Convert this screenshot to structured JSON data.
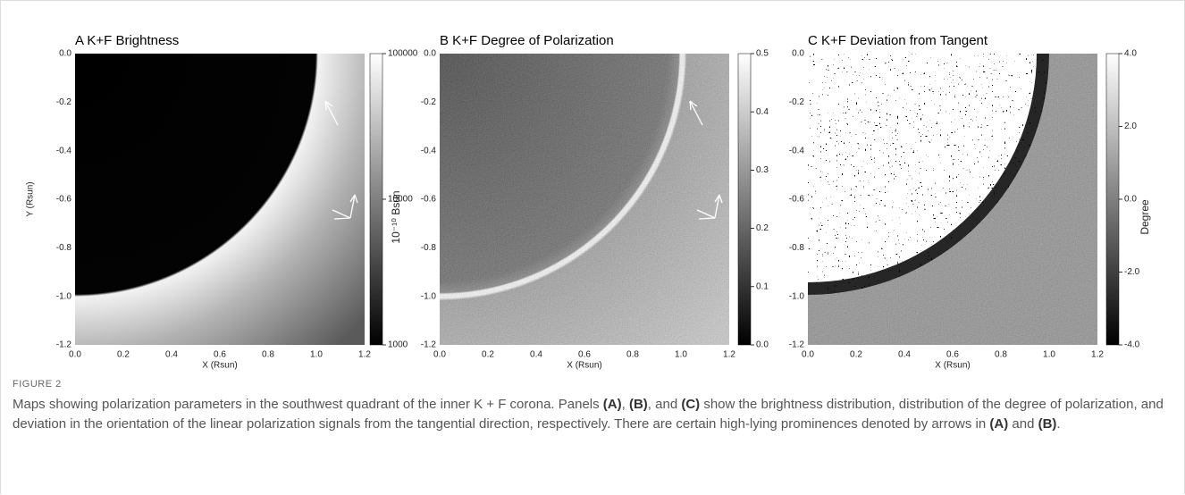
{
  "figure": {
    "panels": [
      {
        "title": "A K+F Brightness",
        "x_label": "X (Rsun)",
        "y_label": "Y (Rsun)",
        "x_ticks": [
          "0.0",
          "0.2",
          "0.4",
          "0.6",
          "0.8",
          "1.0",
          "1.2"
        ],
        "y_ticks": [
          "0.0",
          "-0.2",
          "-0.4",
          "-0.6",
          "-0.8",
          "-1.0",
          "-1.2"
        ],
        "colorbar_ticks": [
          "100000",
          "10000",
          "1000"
        ],
        "colorbar_label": "10⁻¹⁰ Bsun"
      },
      {
        "title": "B K+F Degree of Polarization",
        "x_label": "X (Rsun)",
        "x_ticks": [
          "0.0",
          "0.2",
          "0.4",
          "0.6",
          "0.8",
          "1.0",
          "1.2"
        ],
        "y_ticks": [
          "0.0",
          "-0.2",
          "-0.4",
          "-0.6",
          "-0.8",
          "-1.0",
          "-1.2"
        ],
        "colorbar_ticks": [
          "0.5",
          "0.4",
          "0.3",
          "0.2",
          "0.1",
          "0.0"
        ]
      },
      {
        "title": "C K+F Deviation from Tangent",
        "x_label": "X (Rsun)",
        "x_ticks": [
          "0.0",
          "0.2",
          "0.4",
          "0.6",
          "0.8",
          "1.0",
          "1.2"
        ],
        "y_ticks": [
          "0.0",
          "-0.2",
          "-0.4",
          "-0.6",
          "-0.8",
          "-1.0",
          "-1.2"
        ],
        "colorbar_ticks": [
          "4.0",
          "2.0",
          "0.0",
          "-2.0",
          "-4.0"
        ],
        "colorbar_label": "Degree"
      }
    ],
    "caption": {
      "label": "FIGURE 2",
      "segments": [
        "Maps showing polarization parameters in the southwest quadrant of the inner K + F corona. Panels ",
        "(A)",
        ", ",
        "(B)",
        ", and ",
        "(C)",
        " show the brightness distribution, distribution of the degree of polarization, and deviation in the orientation of the linear polarization signals from the tangential direction, respectively. There are certain high-lying prominences denoted by arrows in ",
        "(A)",
        " and ",
        "(B)",
        "."
      ]
    }
  }
}
